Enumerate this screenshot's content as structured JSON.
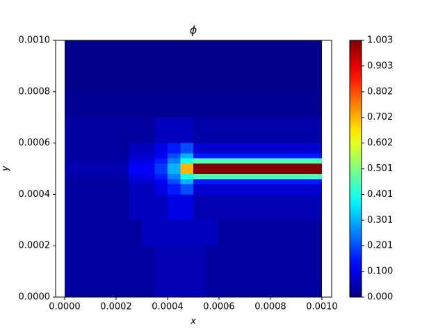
{
  "chart_data": {
    "type": "heatmap",
    "title": "ϕ",
    "x_label": "x",
    "y_label": "y",
    "xlim": [
      -3.5e-05,
      0.001038
    ],
    "ylim": [
      0,
      0.001
    ],
    "xticks": [
      {
        "value": 0,
        "label": "0.0000"
      },
      {
        "value": 0.0002,
        "label": "0.0002"
      },
      {
        "value": 0.0004,
        "label": "0.0004"
      },
      {
        "value": 0.0006,
        "label": "0.0006"
      },
      {
        "value": 0.0008,
        "label": "0.0008"
      },
      {
        "value": 0.001,
        "label": "0.0010"
      }
    ],
    "yticks": [
      {
        "value": 0,
        "label": "0.0000"
      },
      {
        "value": 0.0002,
        "label": "0.0002"
      },
      {
        "value": 0.0004,
        "label": "0.0004"
      },
      {
        "value": 0.0006,
        "label": "0.0006"
      },
      {
        "value": 0.0008,
        "label": "0.0008"
      },
      {
        "value": 0.001,
        "label": "0.0010"
      }
    ],
    "colormap": "jet",
    "clim": [
      0,
      1.003
    ],
    "cticks": [
      {
        "value": 0,
        "label": "0.000"
      },
      {
        "value": 0.1,
        "label": "0.100"
      },
      {
        "value": 0.201,
        "label": "0.201"
      },
      {
        "value": 0.301,
        "label": "0.301"
      },
      {
        "value": 0.401,
        "label": "0.401"
      },
      {
        "value": 0.501,
        "label": "0.501"
      },
      {
        "value": 0.602,
        "label": "0.602"
      },
      {
        "value": 0.702,
        "label": "0.702"
      },
      {
        "value": 0.802,
        "label": "0.802"
      },
      {
        "value": 0.903,
        "label": "0.903"
      },
      {
        "value": 1.003,
        "label": "1.003"
      }
    ],
    "x_edges": [
      0,
      5e-05,
      0.0001,
      0.00015,
      0.0002,
      0.00025,
      0.0003,
      0.00035,
      0.0004,
      0.00045,
      0.0005,
      0.00055,
      0.0006,
      0.00065,
      0.0007,
      0.00075,
      0.0008,
      0.00085,
      0.0009,
      0.00095,
      0.001
    ],
    "y_edges": [
      0,
      0.0002,
      0.0003,
      0.0004,
      0.00044,
      0.00046,
      0.00048,
      0.00052,
      0.00054,
      0.00056,
      0.0006,
      0.0007,
      0.0008,
      0.001
    ],
    "z": [
      [
        0.03,
        0.03,
        0.03,
        0.03,
        0.03,
        0.03,
        0.03,
        0.05,
        0.05,
        0.05,
        0.05,
        0.03,
        0.03,
        0.03,
        0.03,
        0.03,
        0.03,
        0.03,
        0.03,
        0.03
      ],
      [
        0.03,
        0.03,
        0.03,
        0.03,
        0.03,
        0.03,
        0.06,
        0.06,
        0.06,
        0.06,
        0.06,
        0.06,
        0.03,
        0.03,
        0.03,
        0.03,
        0.03,
        0.03,
        0.03,
        0.03
      ],
      [
        0.03,
        0.03,
        0.03,
        0.03,
        0.03,
        0.06,
        0.06,
        0.06,
        0.1,
        0.1,
        0.05,
        0.05,
        0.05,
        0.05,
        0.05,
        0.05,
        0.05,
        0.05,
        0.05,
        0.05
      ],
      [
        0.03,
        0.03,
        0.03,
        0.03,
        0.03,
        0.06,
        0.06,
        0.1,
        0.15,
        0.2,
        0.08,
        0.08,
        0.08,
        0.08,
        0.08,
        0.08,
        0.08,
        0.08,
        0.08,
        0.08
      ],
      [
        0.03,
        0.03,
        0.03,
        0.03,
        0.03,
        0.08,
        0.08,
        0.12,
        0.2,
        0.3,
        0.15,
        0.15,
        0.15,
        0.15,
        0.15,
        0.15,
        0.15,
        0.15,
        0.15,
        0.15
      ],
      [
        0.04,
        0.04,
        0.04,
        0.04,
        0.04,
        0.1,
        0.1,
        0.15,
        0.25,
        0.4,
        0.45,
        0.45,
        0.45,
        0.45,
        0.45,
        0.45,
        0.45,
        0.45,
        0.45,
        0.45
      ],
      [
        0.05,
        0.05,
        0.05,
        0.05,
        0.05,
        0.12,
        0.12,
        0.18,
        0.3,
        0.7,
        1.0,
        1.0,
        1.0,
        1.0,
        1.0,
        1.0,
        1.0,
        1.0,
        1.0,
        1.0
      ],
      [
        0.04,
        0.04,
        0.04,
        0.04,
        0.04,
        0.1,
        0.1,
        0.15,
        0.25,
        0.4,
        0.45,
        0.45,
        0.45,
        0.45,
        0.45,
        0.45,
        0.45,
        0.45,
        0.45,
        0.45
      ],
      [
        0.03,
        0.03,
        0.03,
        0.03,
        0.03,
        0.08,
        0.08,
        0.12,
        0.2,
        0.3,
        0.15,
        0.15,
        0.15,
        0.15,
        0.15,
        0.15,
        0.15,
        0.15,
        0.15,
        0.15
      ],
      [
        0.03,
        0.03,
        0.03,
        0.03,
        0.03,
        0.06,
        0.06,
        0.1,
        0.15,
        0.2,
        0.08,
        0.08,
        0.08,
        0.08,
        0.08,
        0.08,
        0.08,
        0.08,
        0.08,
        0.08
      ],
      [
        0.03,
        0.03,
        0.03,
        0.03,
        0.03,
        0.03,
        0.03,
        0.06,
        0.06,
        0.06,
        0.04,
        0.04,
        0.04,
        0.04,
        0.04,
        0.04,
        0.04,
        0.04,
        0.04,
        0.04
      ],
      [
        0.02,
        0.02,
        0.02,
        0.02,
        0.02,
        0.02,
        0.02,
        0.02,
        0.02,
        0.02,
        0.02,
        0.02,
        0.02,
        0.02,
        0.02,
        0.02,
        0.02,
        0.02,
        0.02,
        0.02
      ],
      [
        0.01,
        0.01,
        0.01,
        0.01,
        0.01,
        0.01,
        0.01,
        0.01,
        0.01,
        0.01,
        0.01,
        0.01,
        0.01,
        0.01,
        0.01,
        0.01,
        0.01,
        0.01,
        0.01,
        0.01
      ]
    ]
  }
}
